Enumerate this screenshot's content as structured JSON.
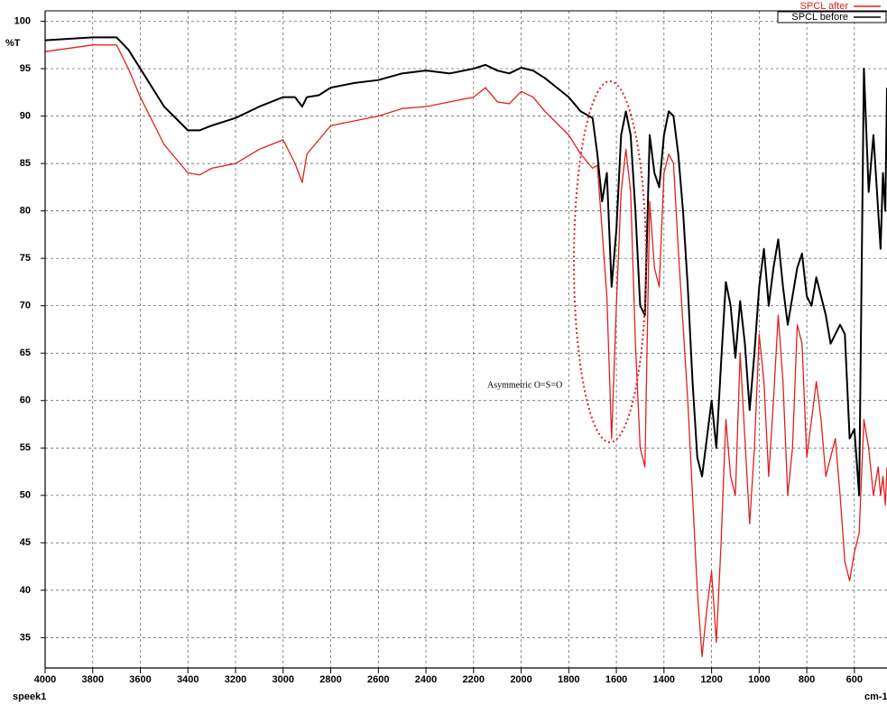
{
  "chart_data": {
    "type": "line",
    "y_label": "%T",
    "x_label": "cm-1",
    "sample_label": "speek1",
    "annotation": "Asymmetric O=S=O",
    "xlim": [
      4000,
      463
    ],
    "ylim": [
      31.8,
      101.1
    ],
    "xticks": [
      4000,
      3800,
      3600,
      3400,
      3200,
      3000,
      2800,
      2600,
      2400,
      2200,
      2000,
      1800,
      1600,
      1400,
      1200,
      1000,
      800,
      600
    ],
    "yticks": [
      35,
      40,
      45,
      50,
      55,
      60,
      65,
      70,
      75,
      80,
      85,
      90,
      95,
      100
    ],
    "grid": true,
    "legend": "top-right",
    "x": [
      4000,
      3800,
      3700,
      3650,
      3600,
      3500,
      3400,
      3350,
      3300,
      3200,
      3100,
      3000,
      2950,
      2920,
      2900,
      2850,
      2800,
      2700,
      2600,
      2500,
      2400,
      2300,
      2200,
      2150,
      2100,
      2050,
      2000,
      1950,
      1900,
      1800,
      1750,
      1700,
      1680,
      1660,
      1640,
      1620,
      1600,
      1580,
      1560,
      1540,
      1520,
      1500,
      1480,
      1460,
      1440,
      1420,
      1400,
      1380,
      1360,
      1340,
      1320,
      1300,
      1280,
      1260,
      1240,
      1220,
      1200,
      1180,
      1160,
      1140,
      1120,
      1100,
      1080,
      1060,
      1040,
      1020,
      1000,
      980,
      960,
      940,
      920,
      900,
      880,
      860,
      840,
      820,
      800,
      780,
      760,
      740,
      720,
      700,
      680,
      660,
      640,
      620,
      600,
      580,
      560,
      540,
      520,
      500,
      490,
      480,
      470,
      463
    ],
    "series": [
      {
        "name": "SPCL after",
        "color": "#e02020",
        "values": [
          96.8,
          97.5,
          97.5,
          95,
          92,
          87,
          84,
          83.8,
          84.5,
          85,
          86.5,
          87.5,
          85,
          83,
          86,
          87.5,
          89,
          89.5,
          90,
          90.8,
          91,
          91.5,
          92,
          93,
          91.5,
          91.3,
          92.6,
          92,
          90.5,
          88,
          86,
          84.5,
          84.8,
          78,
          71,
          56,
          70,
          82,
          86.5,
          82,
          66,
          55,
          53,
          81,
          74,
          72,
          84,
          86,
          85,
          76,
          68,
          60,
          50,
          40,
          33,
          38,
          42,
          34.5,
          45,
          58,
          52,
          50,
          65,
          56,
          47,
          55,
          67,
          62,
          52,
          60,
          69,
          62,
          50,
          55,
          68,
          66,
          54,
          58,
          62,
          58,
          52,
          54,
          56,
          50,
          43,
          41,
          44,
          46,
          58,
          55,
          50,
          53,
          50,
          52,
          49,
          53
        ]
      },
      {
        "name": "SPCL before",
        "color": "#000000",
        "values": [
          98,
          98.3,
          98.3,
          97,
          95,
          91,
          88.5,
          88.5,
          89,
          89.8,
          91,
          92,
          92,
          91,
          92,
          92.2,
          93,
          93.5,
          93.8,
          94.5,
          94.8,
          94.5,
          95,
          95.4,
          94.8,
          94.5,
          95.1,
          94.8,
          94,
          92,
          90.5,
          89.8,
          86,
          81,
          84,
          72,
          78,
          88,
          90.5,
          88,
          80,
          70,
          69,
          88,
          84,
          82.5,
          88,
          90.5,
          90,
          86,
          80,
          72,
          62,
          54,
          52,
          56,
          60,
          55,
          64,
          72.5,
          70,
          64.5,
          70.5,
          66,
          59,
          65,
          72,
          76,
          70,
          74,
          77,
          72,
          68,
          71,
          74,
          75.5,
          71,
          70,
          73,
          71,
          69,
          66,
          67,
          68,
          67,
          56,
          57,
          50,
          95,
          82,
          88,
          80,
          76,
          84,
          80,
          93
        ]
      }
    ]
  }
}
